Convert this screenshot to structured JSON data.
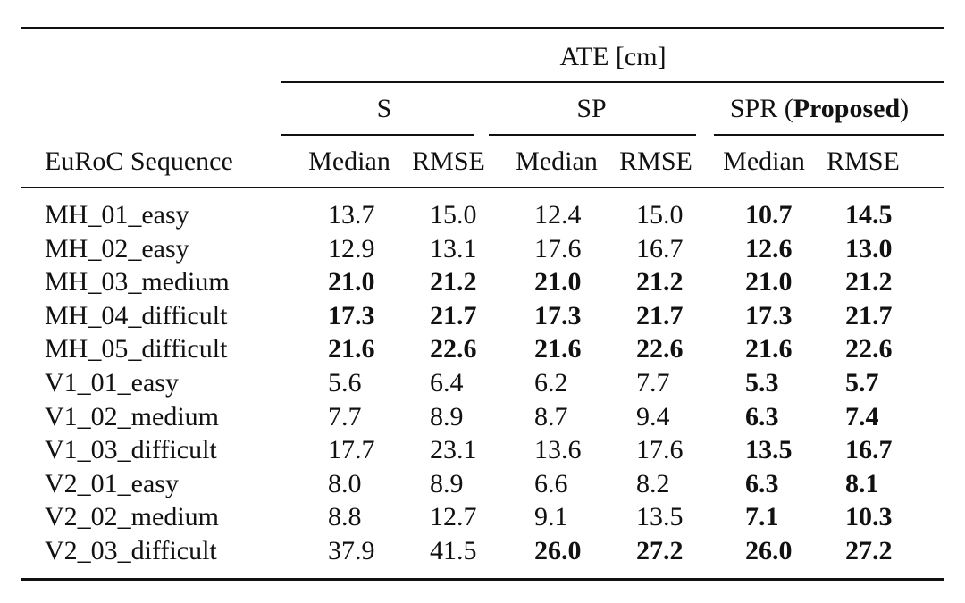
{
  "header": {
    "group_label": "ATE [cm]",
    "row_header": "EuRoC Sequence",
    "methods": [
      {
        "name": "S",
        "name_suffix": "",
        "name_bold": ""
      },
      {
        "name": "SP",
        "name_suffix": "",
        "name_bold": ""
      },
      {
        "name": "SPR (",
        "name_bold": "Proposed",
        "name_suffix": ")"
      }
    ],
    "sub_columns": [
      "Median",
      "RMSE"
    ]
  },
  "rows": [
    {
      "sequence": "MH_01_easy",
      "values": [
        "13.7",
        "15.0",
        "12.4",
        "15.0",
        "10.7",
        "14.5"
      ],
      "bold": [
        false,
        false,
        false,
        false,
        true,
        true
      ]
    },
    {
      "sequence": "MH_02_easy",
      "values": [
        "12.9",
        "13.1",
        "17.6",
        "16.7",
        "12.6",
        "13.0"
      ],
      "bold": [
        false,
        false,
        false,
        false,
        true,
        true
      ]
    },
    {
      "sequence": "MH_03_medium",
      "values": [
        "21.0",
        "21.2",
        "21.0",
        "21.2",
        "21.0",
        "21.2"
      ],
      "bold": [
        true,
        true,
        true,
        true,
        true,
        true
      ]
    },
    {
      "sequence": "MH_04_difficult",
      "values": [
        "17.3",
        "21.7",
        "17.3",
        "21.7",
        "17.3",
        "21.7"
      ],
      "bold": [
        true,
        true,
        true,
        true,
        true,
        true
      ]
    },
    {
      "sequence": "MH_05_difficult",
      "values": [
        "21.6",
        "22.6",
        "21.6",
        "22.6",
        "21.6",
        "22.6"
      ],
      "bold": [
        true,
        true,
        true,
        true,
        true,
        true
      ]
    },
    {
      "sequence": "V1_01_easy",
      "values": [
        "5.6",
        "6.4",
        "6.2",
        "7.7",
        "5.3",
        "5.7"
      ],
      "bold": [
        false,
        false,
        false,
        false,
        true,
        true
      ]
    },
    {
      "sequence": "V1_02_medium",
      "values": [
        "7.7",
        "8.9",
        "8.7",
        "9.4",
        "6.3",
        "7.4"
      ],
      "bold": [
        false,
        false,
        false,
        false,
        true,
        true
      ]
    },
    {
      "sequence": "V1_03_difficult",
      "values": [
        "17.7",
        "23.1",
        "13.6",
        "17.6",
        "13.5",
        "16.7"
      ],
      "bold": [
        false,
        false,
        false,
        false,
        true,
        true
      ]
    },
    {
      "sequence": "V2_01_easy",
      "values": [
        "8.0",
        "8.9",
        "6.6",
        "8.2",
        "6.3",
        "8.1"
      ],
      "bold": [
        false,
        false,
        false,
        false,
        true,
        true
      ]
    },
    {
      "sequence": "V2_02_medium",
      "values": [
        "8.8",
        "12.7",
        "9.1",
        "13.5",
        "7.1",
        "10.3"
      ],
      "bold": [
        false,
        false,
        false,
        false,
        true,
        true
      ]
    },
    {
      "sequence": "V2_03_difficult",
      "values": [
        "37.9",
        "41.5",
        "26.0",
        "27.2",
        "26.0",
        "27.2"
      ],
      "bold": [
        false,
        false,
        true,
        true,
        true,
        true
      ]
    }
  ]
}
